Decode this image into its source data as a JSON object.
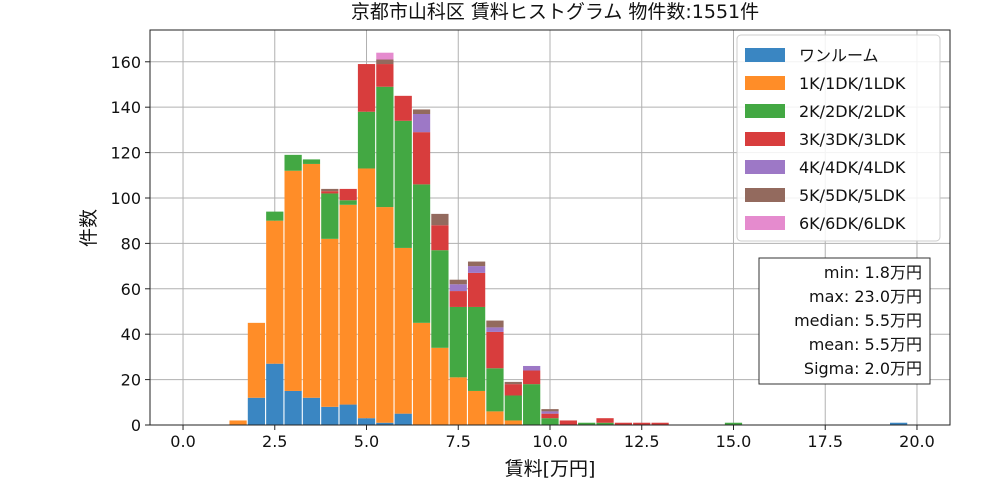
{
  "chart_data": {
    "type": "bar",
    "title": "京都市山科区 賃料ヒストグラム  物件数:1551件",
    "xlabel": "賃料[万円]",
    "ylabel": "件数",
    "xlim": [
      -0.9,
      20.9
    ],
    "ylim": [
      0,
      174
    ],
    "x_ticks": [
      "0.0",
      "2.5",
      "5.0",
      "7.5",
      "10.0",
      "12.5",
      "15.0",
      "17.5",
      "20.0"
    ],
    "x_tick_values": [
      0,
      2.5,
      5,
      7.5,
      10,
      12.5,
      15,
      17.5,
      20
    ],
    "y_ticks": [
      "0",
      "20",
      "40",
      "60",
      "80",
      "100",
      "120",
      "140",
      "160"
    ],
    "y_tick_values": [
      0,
      20,
      40,
      60,
      80,
      100,
      120,
      140,
      160
    ],
    "grid": true,
    "stacked": true,
    "bin_width": 0.5,
    "legend_position": "top-right",
    "categories": [
      1.5,
      2.0,
      2.5,
      3.0,
      3.5,
      4.0,
      4.5,
      5.0,
      5.5,
      6.0,
      6.5,
      7.0,
      7.5,
      8.0,
      8.5,
      9.0,
      9.5,
      10.0,
      10.5,
      11.0,
      11.5,
      12.0,
      12.5,
      13.0,
      15.0,
      19.5
    ],
    "series": [
      {
        "name": "ワンルーム",
        "color": "#3a86c2",
        "values": [
          0,
          12,
          27,
          15,
          12,
          8,
          9,
          3,
          1,
          5,
          0,
          0,
          0,
          0,
          0,
          0,
          0,
          0,
          0,
          0,
          0,
          0,
          0,
          0,
          0,
          1
        ]
      },
      {
        "name": "1K/1DK/1LDK",
        "color": "#ff8d28",
        "values": [
          2,
          33,
          63,
          97,
          103,
          74,
          88,
          110,
          95,
          73,
          45,
          34,
          21,
          15,
          6,
          2,
          0,
          0,
          0,
          0,
          0,
          0,
          0,
          0,
          0,
          0
        ]
      },
      {
        "name": "2K/2DK/2LDK",
        "color": "#43a843",
        "values": [
          0,
          0,
          4,
          7,
          2,
          20,
          2,
          25,
          53,
          56,
          61,
          43,
          31,
          37,
          19,
          11,
          18,
          3,
          0,
          1,
          1,
          0,
          0,
          0,
          1,
          0
        ]
      },
      {
        "name": "3K/3DK/3LDK",
        "color": "#d83d3d",
        "values": [
          0,
          0,
          0,
          0,
          0,
          1,
          5,
          21,
          10,
          11,
          23,
          11,
          7,
          15,
          16,
          5,
          6,
          2,
          2,
          0,
          2,
          1,
          1,
          1,
          0,
          0
        ]
      },
      {
        "name": "4K/4DK/4LDK",
        "color": "#9d78c6",
        "values": [
          0,
          0,
          0,
          0,
          0,
          0,
          0,
          0,
          0,
          0,
          8,
          0,
          3,
          3,
          2,
          0,
          2,
          1,
          0,
          0,
          0,
          0,
          0,
          0,
          0,
          0
        ]
      },
      {
        "name": "5K/5DK/5LDK",
        "color": "#936a5e",
        "values": [
          0,
          0,
          0,
          0,
          0,
          1,
          0,
          0,
          2,
          0,
          2,
          5,
          2,
          2,
          3,
          1,
          0,
          1,
          0,
          0,
          0,
          0,
          0,
          0,
          0,
          0
        ]
      },
      {
        "name": "6K/6DK/6LDK",
        "color": "#e58bce",
        "values": [
          0,
          0,
          0,
          0,
          0,
          0,
          0,
          0,
          3,
          0,
          0,
          0,
          0,
          0,
          0,
          0,
          0,
          0,
          0,
          0,
          0,
          0,
          0,
          0,
          0,
          0
        ]
      }
    ],
    "stats": [
      "min: 1.8万円",
      "max: 23.0万円",
      "median: 5.5万円",
      "mean: 5.5万円",
      "Sigma: 2.0万円"
    ]
  }
}
